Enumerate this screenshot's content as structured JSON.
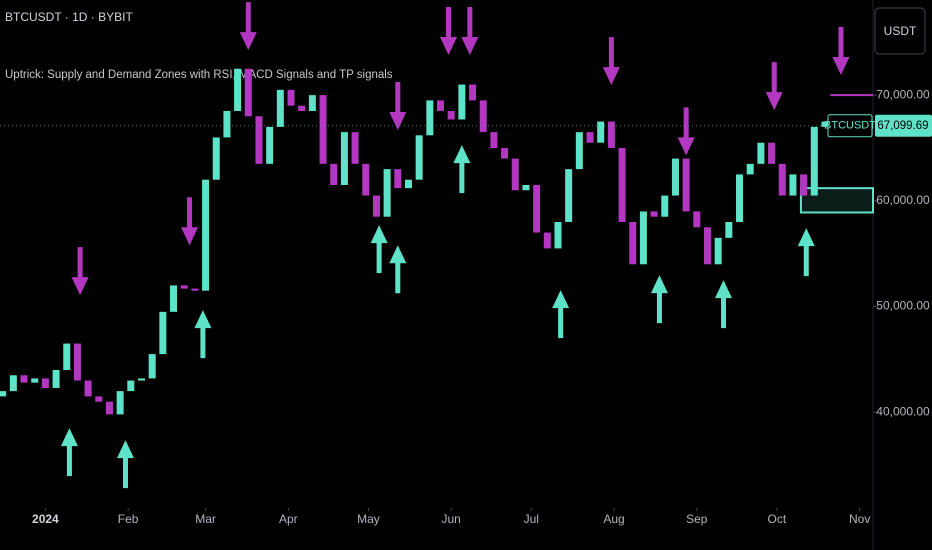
{
  "chart_data": {
    "type": "candlestick",
    "title": "BTCUSDT · 1D · BYBIT",
    "subtitle": "Uptrick: Supply and Demand Zones with RSI, MACD Signals and TP signals",
    "currency": "USDT",
    "symbol": "BTCUSDT",
    "up_color": "#5fe3c8",
    "down_color": "#b437c2",
    "x": [
      -16,
      -12,
      -8,
      -4,
      0,
      4,
      8,
      12,
      16,
      20,
      24,
      28,
      32,
      36,
      40,
      44,
      48,
      52,
      56,
      60,
      64,
      68,
      72,
      76,
      80,
      84,
      88,
      92,
      96,
      100,
      104,
      108,
      112,
      116,
      120,
      124,
      128,
      132,
      136,
      140,
      144,
      148,
      152,
      156,
      160,
      164,
      168,
      172,
      176,
      180,
      184,
      188,
      192,
      196,
      200,
      204,
      208,
      212,
      216,
      220,
      224,
      228,
      232,
      236,
      240,
      244,
      248,
      252,
      256,
      260,
      264,
      268,
      272,
      276,
      280,
      284,
      288,
      292,
      296
    ],
    "open": [
      41500,
      42000,
      43500,
      42800,
      43200,
      42300,
      44000,
      46500,
      43000,
      41500,
      41000,
      39800,
      42000,
      43000,
      43200,
      45500,
      49500,
      52000,
      51700,
      51500,
      62000,
      66000,
      68500,
      72500,
      68000,
      63500,
      67000,
      70500,
      69000,
      68500,
      70000,
      63500,
      61500,
      66500,
      63500,
      60500,
      58500,
      63000,
      61200,
      62000,
      66200,
      69500,
      68500,
      67700,
      71000,
      69500,
      66500,
      65000,
      64000,
      61000,
      61500,
      57000,
      55500,
      58000,
      63000,
      66500,
      65500,
      67500,
      65000,
      58000,
      54000,
      59000,
      58500,
      60500,
      64000,
      59000,
      57500,
      54000,
      56500,
      58000,
      62500,
      63500,
      65500,
      63500,
      60500,
      62500,
      60500,
      67000,
      67500
    ],
    "close": [
      42000,
      43500,
      42800,
      43200,
      42300,
      44000,
      46500,
      43000,
      41500,
      41000,
      39800,
      42000,
      43000,
      43200,
      45500,
      49500,
      52000,
      51700,
      51500,
      62000,
      66000,
      68500,
      72500,
      68000,
      63500,
      67000,
      70500,
      69000,
      68500,
      70000,
      63500,
      61500,
      66500,
      63500,
      60500,
      58500,
      63000,
      61200,
      62000,
      66200,
      69500,
      68500,
      67700,
      71000,
      69500,
      66500,
      65000,
      64000,
      61000,
      61500,
      57000,
      55500,
      58000,
      63000,
      66500,
      65500,
      67500,
      65000,
      58000,
      54000,
      59000,
      58500,
      60500,
      64000,
      59000,
      57500,
      54000,
      56500,
      58000,
      62500,
      63500,
      65500,
      63500,
      60500,
      62500,
      60500,
      67000,
      67500,
      67100
    ],
    "sell_signals": {
      "x": [
        13,
        54,
        76,
        132,
        151,
        159,
        212,
        240,
        273,
        298
      ],
      "y": [
        51080,
        55800,
        74260,
        66700,
        73800,
        73800,
        70950,
        64300,
        68580,
        71900
      ]
    },
    "buy_signals": {
      "x": [
        9,
        30,
        59,
        125,
        132,
        156,
        193,
        230,
        254,
        285
      ],
      "y": [
        38500,
        37360,
        49660,
        57700,
        55800,
        65270,
        51550,
        52970,
        52500,
        57420
      ]
    },
    "demand_zone": {
      "start": 283,
      "low": 58900,
      "high": 61200
    },
    "supply_zone": {
      "start": 294,
      "price": 70000
    },
    "last_price": 67099.69,
    "last_price_label": "67,099.69",
    "xlim": [
      -17,
      307
    ],
    "ylim": [
      31700,
      79000
    ],
    "xticks": [
      {
        "value": 0,
        "label": "2024"
      },
      {
        "value": 31,
        "label": "Feb"
      },
      {
        "value": 60,
        "label": "Mar"
      },
      {
        "value": 91,
        "label": "Apr"
      },
      {
        "value": 121,
        "label": "May"
      },
      {
        "value": 152,
        "label": "Jun"
      },
      {
        "value": 182,
        "label": "Jul"
      },
      {
        "value": 213,
        "label": "Aug"
      },
      {
        "value": 244,
        "label": "Sep"
      },
      {
        "value": 274,
        "label": "Oct"
      },
      {
        "value": 305,
        "label": "Nov"
      }
    ],
    "yticks": [
      {
        "value": 40000,
        "label": "40,000.00"
      },
      {
        "value": 50000,
        "label": "50,000.00"
      },
      {
        "value": 60000,
        "label": "60,000.00"
      },
      {
        "value": 70000,
        "label": "70,000.00"
      }
    ]
  }
}
